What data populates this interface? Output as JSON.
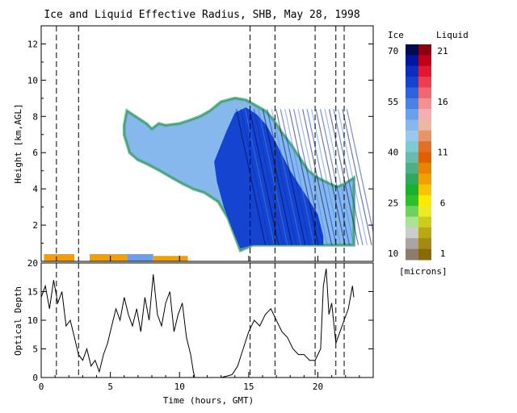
{
  "chart_data": [
    {
      "type": "heatmap",
      "title": "Ice and Liquid Effective Radius, SHB, May 28, 1998",
      "xlabel": "",
      "ylabel": "Height [km,AGL]",
      "xlim": [
        0,
        24
      ],
      "ylim": [
        0,
        13
      ],
      "x_ticks": [
        "0",
        "5",
        "10",
        "15",
        "20"
      ],
      "y_ticks": [
        "2",
        "4",
        "6",
        "8",
        "10",
        "12"
      ],
      "reference_lines_x": [
        1.1,
        2.7,
        15.1,
        16.9,
        19.8,
        21.3,
        21.9
      ],
      "colorbar": {
        "ice_label": "Ice",
        "liquid_label": "Liquid",
        "unit": "[microns]",
        "ice_ticks": [
          "70",
          "55",
          "40",
          "25",
          "10"
        ],
        "liquid_ticks": [
          "21",
          "16",
          "11",
          "6",
          "1"
        ],
        "ice_colors": [
          "#000a50",
          "#0018a0",
          "#0a2ec0",
          "#1444d0",
          "#2d62dc",
          "#4a82e4",
          "#6aa0ea",
          "#86b8ee",
          "#98c8ee",
          "#7ecad2",
          "#68bcae",
          "#4fb088",
          "#2fa860",
          "#18b22e",
          "#2cc02c",
          "#6cd45c",
          "#a8e494",
          "#cccccc",
          "#aaa4a0",
          "#8c7c6c"
        ],
        "liquid_colors": [
          "#8a0010",
          "#c00018",
          "#e01830",
          "#ec3e4e",
          "#f2666e",
          "#f49090",
          "#f4b0b0",
          "#ecb8a0",
          "#e69468",
          "#e07024",
          "#e06000",
          "#e88400",
          "#f0a000",
          "#f6c400",
          "#fcea00",
          "#ecec24",
          "#cccc1c",
          "#b8a814",
          "#a48a10",
          "#8a6a04"
        ]
      },
      "ice_cloud_outline": [
        [
          6.0,
          7.5
        ],
        [
          6.2,
          8.3
        ],
        [
          6.8,
          8.0
        ],
        [
          7.6,
          7.6
        ],
        [
          8.0,
          7.3
        ],
        [
          8.5,
          7.6
        ],
        [
          9.0,
          7.5
        ],
        [
          10.0,
          7.6
        ],
        [
          10.8,
          7.8
        ],
        [
          11.5,
          8.0
        ],
        [
          12.2,
          8.3
        ],
        [
          13.0,
          8.8
        ],
        [
          14.0,
          9.0
        ],
        [
          14.8,
          8.9
        ],
        [
          15.5,
          8.6
        ],
        [
          16.2,
          8.3
        ],
        [
          16.8,
          7.8
        ],
        [
          17.3,
          7.2
        ],
        [
          18.0,
          6.5
        ],
        [
          18.7,
          5.7
        ],
        [
          19.3,
          5.0
        ],
        [
          20.0,
          4.6
        ],
        [
          20.8,
          4.3
        ],
        [
          21.4,
          4.1
        ],
        [
          22.0,
          4.3
        ],
        [
          22.6,
          4.6
        ],
        [
          22.6,
          0.9
        ],
        [
          17.0,
          0.9
        ],
        [
          15.3,
          0.9
        ],
        [
          14.4,
          0.6
        ],
        [
          14.0,
          1.4
        ],
        [
          13.5,
          2.4
        ],
        [
          12.8,
          3.3
        ],
        [
          11.8,
          3.8
        ],
        [
          11.0,
          4.0
        ],
        [
          10.2,
          4.3
        ],
        [
          9.5,
          4.6
        ],
        [
          8.6,
          5.0
        ],
        [
          7.6,
          5.4
        ],
        [
          7.0,
          5.6
        ],
        [
          6.4,
          6.0
        ],
        [
          6.0,
          7.0
        ]
      ],
      "ice_dense_core": [
        [
          12.5,
          5.5
        ],
        [
          13.4,
          7.2
        ],
        [
          14.0,
          8.2
        ],
        [
          14.8,
          8.5
        ],
        [
          15.6,
          8.1
        ],
        [
          16.3,
          7.5
        ],
        [
          17.0,
          6.5
        ],
        [
          18.0,
          5.0
        ],
        [
          19.0,
          3.8
        ],
        [
          20.0,
          2.6
        ],
        [
          20.4,
          1.4
        ],
        [
          20.4,
          0.9
        ],
        [
          15.3,
          0.9
        ],
        [
          14.4,
          0.7
        ],
        [
          13.8,
          1.8
        ],
        [
          13.2,
          3.0
        ],
        [
          12.7,
          4.4
        ]
      ],
      "liquid_layer": [
        {
          "x": [
            0.2,
            2.4
          ],
          "y": [
            0.0,
            0.4
          ],
          "radius_microns": 8
        },
        {
          "x": [
            3.5,
            6.2
          ],
          "y": [
            0.0,
            0.4
          ],
          "radius_microns": 8
        },
        {
          "x": [
            6.2,
            8.1
          ],
          "y": [
            0.0,
            0.4
          ],
          "radius_microns": 18
        },
        {
          "x": [
            8.1,
            10.6
          ],
          "y": [
            0.0,
            0.3
          ],
          "radius_microns": 8
        }
      ]
    },
    {
      "type": "line",
      "title": "",
      "xlabel": "Time (hours, GMT)",
      "ylabel": "Optical Depth",
      "xlim": [
        0,
        24
      ],
      "ylim": [
        0,
        20
      ],
      "x_ticks": [
        "0",
        "5",
        "10",
        "15",
        "20"
      ],
      "y_ticks": [
        "0",
        "5",
        "10",
        "15",
        "20"
      ],
      "reference_lines_x": [
        1.1,
        2.7,
        15.1,
        16.9,
        19.8,
        21.3,
        21.9
      ],
      "series": [
        {
          "x": [
            0.0,
            0.3,
            0.6,
            0.9,
            1.2,
            1.5,
            1.8,
            2.1,
            2.4,
            2.7,
            3.0,
            3.3,
            3.6,
            3.9,
            4.2,
            4.5,
            4.8,
            5.1,
            5.4,
            5.7,
            6.0,
            6.3,
            6.6,
            6.9,
            7.2,
            7.5,
            7.8,
            8.1,
            8.4,
            8.7,
            9.0,
            9.3,
            9.6,
            9.9,
            10.2,
            10.5,
            10.8,
            11.0,
            11.1,
            12.0,
            13.0,
            13.5,
            13.8,
            14.2,
            14.6,
            15.0,
            15.4,
            15.8,
            16.2,
            16.6,
            17.0,
            17.4,
            17.8,
            18.2,
            18.6,
            19.0,
            19.4,
            19.8,
            20.2,
            20.4,
            20.6,
            20.8,
            21.0,
            21.3,
            21.6,
            21.9,
            22.2,
            22.5,
            22.6
          ],
          "y": [
            14,
            16,
            12,
            17,
            13,
            15,
            9,
            10,
            7,
            4,
            3,
            5,
            2,
            3,
            1,
            4,
            6,
            9,
            12,
            10,
            14,
            11,
            9,
            12,
            8,
            14,
            10,
            18,
            11,
            9,
            13,
            15,
            8,
            11,
            13,
            7,
            4,
            1,
            0,
            0,
            0,
            0.3,
            0.5,
            2,
            5,
            8,
            10,
            9,
            11,
            12,
            10,
            8,
            7,
            5,
            4,
            4,
            3,
            3,
            5,
            16,
            19,
            11,
            13,
            6,
            8,
            10,
            12,
            16,
            14
          ]
        }
      ]
    }
  ]
}
